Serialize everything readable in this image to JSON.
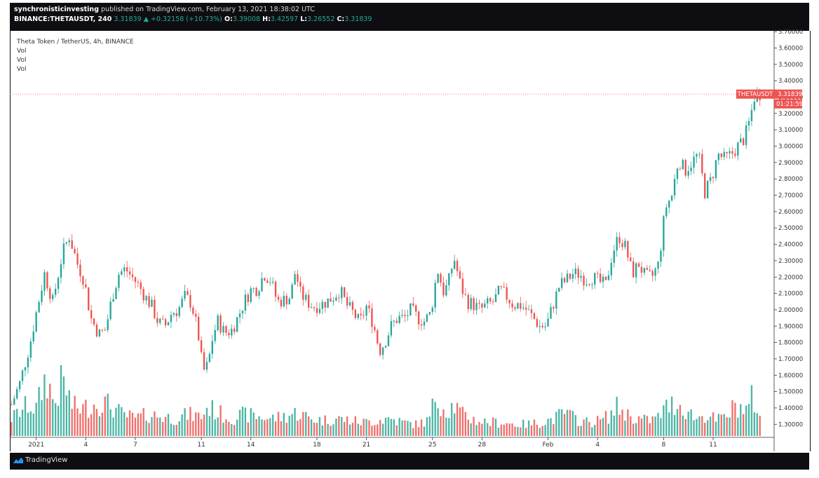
{
  "header": {
    "publisher": "synchronisticinvesting",
    "published_text": " published on TradingView.com, February 13, 2021 18:38:02 UTC",
    "symbol": "BINANCE:THETAUSDT, 240",
    "last": "3.31839",
    "change_arrow": "▲",
    "change": "+0.32158 (+10.73%)",
    "o_label": "O:",
    "o_val": "3.39008",
    "h_label": "H:",
    "h_val": "3.42597",
    "l_label": "L:",
    "l_val": "3.26552",
    "c_label": "C:",
    "c_val": "3.31839"
  },
  "legend": {
    "title": "Theta Token / TetherUS, 4h, BINANCE",
    "vol1": "Vol",
    "vol2": "Vol",
    "vol3": "Vol"
  },
  "price_tag": {
    "symbol": "THETAUSDT",
    "price": "3.31839",
    "countdown": "01:21:59"
  },
  "footer": {
    "brand": "TradingView"
  },
  "colors": {
    "up": "#26a69a",
    "down": "#ef5350",
    "vol_up": "#4db6a6",
    "vol_down": "#f0706c",
    "axis_text": "#333333"
  },
  "chart_data": {
    "type": "candlestick",
    "interval": "4h",
    "y_axis": {
      "side": "right",
      "ticks": [
        "3.70000",
        "3.60000",
        "3.50000",
        "3.40000",
        "3.30000",
        "3.20000",
        "3.10000",
        "3.00000",
        "2.90000",
        "2.80000",
        "2.70000",
        "2.60000",
        "2.50000",
        "2.40000",
        "2.30000",
        "2.20000",
        "2.10000",
        "2.00000",
        "1.90000",
        "1.80000",
        "1.70000",
        "1.60000",
        "1.50000",
        "1.40000",
        "1.30000"
      ],
      "range": [
        1.22,
        3.705
      ]
    },
    "x_axis": {
      "ticks": [
        {
          "label": "2021",
          "day": 1
        },
        {
          "label": "4",
          "day": 4
        },
        {
          "label": "7",
          "day": 7
        },
        {
          "label": "11",
          "day": 11
        },
        {
          "label": "14",
          "day": 14
        },
        {
          "label": "18",
          "day": 18
        },
        {
          "label": "21",
          "day": 21
        },
        {
          "label": "25",
          "day": 25
        },
        {
          "label": "28",
          "day": 28
        },
        {
          "label": "Feb",
          "day": 32
        },
        {
          "label": "4",
          "day": 35
        },
        {
          "label": "8",
          "day": 39
        },
        {
          "label": "11",
          "day": 42
        }
      ],
      "day_range": [
        -0.6,
        45.1
      ]
    },
    "last_price": 3.31839,
    "close_path": [
      [
        -0.5,
        1.42
      ],
      [
        0.0,
        1.55
      ],
      [
        0.6,
        1.78
      ],
      [
        1.0,
        1.98
      ],
      [
        1.5,
        2.22
      ],
      [
        2.0,
        2.05
      ],
      [
        2.6,
        2.35
      ],
      [
        3.0,
        2.45
      ],
      [
        3.5,
        2.28
      ],
      [
        3.9,
        2.18
      ],
      [
        4.3,
        1.95
      ],
      [
        4.8,
        1.85
      ],
      [
        5.2,
        1.88
      ],
      [
        5.6,
        2.08
      ],
      [
        6.0,
        2.22
      ],
      [
        6.4,
        2.25
      ],
      [
        6.8,
        2.2
      ],
      [
        7.2,
        2.15
      ],
      [
        7.6,
        2.08
      ],
      [
        8.0,
        2.02
      ],
      [
        8.4,
        1.92
      ],
      [
        8.8,
        1.9
      ],
      [
        9.2,
        1.98
      ],
      [
        9.6,
        2.0
      ],
      [
        10.0,
        2.08
      ],
      [
        10.4,
        2.04
      ],
      [
        10.8,
        1.86
      ],
      [
        11.1,
        1.62
      ],
      [
        11.4,
        1.66
      ],
      [
        11.7,
        1.84
      ],
      [
        12.0,
        1.93
      ],
      [
        12.4,
        1.86
      ],
      [
        12.8,
        1.87
      ],
      [
        13.2,
        1.95
      ],
      [
        13.6,
        2.05
      ],
      [
        14.0,
        2.12
      ],
      [
        14.4,
        2.13
      ],
      [
        14.8,
        2.22
      ],
      [
        15.2,
        2.18
      ],
      [
        15.6,
        2.05
      ],
      [
        16.0,
        2.06
      ],
      [
        16.4,
        2.08
      ],
      [
        16.7,
        2.24
      ],
      [
        17.0,
        2.1
      ],
      [
        17.4,
        2.05
      ],
      [
        17.8,
        2.02
      ],
      [
        18.2,
        2.03
      ],
      [
        18.6,
        2.05
      ],
      [
        19.0,
        2.08
      ],
      [
        19.4,
        2.12
      ],
      [
        19.8,
        2.03
      ],
      [
        20.2,
        1.98
      ],
      [
        20.6,
        1.92
      ],
      [
        21.0,
        2.02
      ],
      [
        21.4,
        1.92
      ],
      [
        21.8,
        1.75
      ],
      [
        22.1,
        1.8
      ],
      [
        22.5,
        1.9
      ],
      [
        22.9,
        1.95
      ],
      [
        23.3,
        1.95
      ],
      [
        23.7,
        2.0
      ],
      [
        24.1,
        1.95
      ],
      [
        24.5,
        1.93
      ],
      [
        24.9,
        1.98
      ],
      [
        25.3,
        2.25
      ],
      [
        25.7,
        2.1
      ],
      [
        26.0,
        2.18
      ],
      [
        26.3,
        2.32
      ],
      [
        26.7,
        2.15
      ],
      [
        27.1,
        2.05
      ],
      [
        27.5,
        2.03
      ],
      [
        27.9,
        2.0
      ],
      [
        28.3,
        2.03
      ],
      [
        28.7,
        2.05
      ],
      [
        29.1,
        2.12
      ],
      [
        29.5,
        2.08
      ],
      [
        29.9,
        2.03
      ],
      [
        30.3,
        2.03
      ],
      [
        30.7,
        2.0
      ],
      [
        31.1,
        1.95
      ],
      [
        31.5,
        1.9
      ],
      [
        31.9,
        1.9
      ],
      [
        32.3,
        2.03
      ],
      [
        32.7,
        2.15
      ],
      [
        33.1,
        2.18
      ],
      [
        33.5,
        2.22
      ],
      [
        33.9,
        2.22
      ],
      [
        34.3,
        2.18
      ],
      [
        34.7,
        2.2
      ],
      [
        35.1,
        2.17
      ],
      [
        35.5,
        2.15
      ],
      [
        35.9,
        2.35
      ],
      [
        36.3,
        2.45
      ],
      [
        36.7,
        2.38
      ],
      [
        37.1,
        2.22
      ],
      [
        37.5,
        2.28
      ],
      [
        37.9,
        2.2
      ],
      [
        38.3,
        2.2
      ],
      [
        38.7,
        2.28
      ],
      [
        39.1,
        2.62
      ],
      [
        39.5,
        2.7
      ],
      [
        39.9,
        2.92
      ],
      [
        40.3,
        2.85
      ],
      [
        40.7,
        2.9
      ],
      [
        41.1,
        2.95
      ],
      [
        41.5,
        2.72
      ],
      [
        41.9,
        2.8
      ],
      [
        42.3,
        2.95
      ],
      [
        42.7,
        2.92
      ],
      [
        43.1,
        2.95
      ],
      [
        43.5,
        3.0
      ],
      [
        43.9,
        3.05
      ],
      [
        44.2,
        3.15
      ],
      [
        44.5,
        3.3
      ],
      [
        44.8,
        3.32
      ]
    ],
    "volume_path": [
      [
        -0.5,
        0.18
      ],
      [
        0.5,
        0.32
      ],
      [
        1.0,
        0.28
      ],
      [
        1.6,
        0.62
      ],
      [
        2.1,
        0.32
      ],
      [
        2.6,
        0.58
      ],
      [
        3.2,
        0.3
      ],
      [
        3.8,
        0.28
      ],
      [
        4.4,
        0.32
      ],
      [
        5.0,
        0.35
      ],
      [
        5.6,
        0.3
      ],
      [
        6.2,
        0.22
      ],
      [
        7.0,
        0.18
      ],
      [
        7.8,
        0.22
      ],
      [
        8.6,
        0.2
      ],
      [
        9.4,
        0.18
      ],
      [
        10.2,
        0.22
      ],
      [
        11.0,
        0.2
      ],
      [
        11.4,
        0.3
      ],
      [
        12.0,
        0.24
      ],
      [
        12.8,
        0.18
      ],
      [
        13.6,
        0.22
      ],
      [
        14.4,
        0.2
      ],
      [
        15.2,
        0.18
      ],
      [
        16.0,
        0.2
      ],
      [
        16.8,
        0.24
      ],
      [
        17.6,
        0.18
      ],
      [
        18.4,
        0.16
      ],
      [
        19.2,
        0.18
      ],
      [
        20.0,
        0.16
      ],
      [
        20.8,
        0.14
      ],
      [
        21.6,
        0.16
      ],
      [
        22.4,
        0.18
      ],
      [
        23.2,
        0.14
      ],
      [
        24.0,
        0.12
      ],
      [
        24.8,
        0.16
      ],
      [
        25.2,
        0.42
      ],
      [
        25.8,
        0.26
      ],
      [
        26.3,
        0.32
      ],
      [
        26.8,
        0.22
      ],
      [
        27.6,
        0.16
      ],
      [
        28.4,
        0.14
      ],
      [
        29.2,
        0.14
      ],
      [
        30.0,
        0.12
      ],
      [
        30.8,
        0.12
      ],
      [
        31.6,
        0.14
      ],
      [
        32.4,
        0.18
      ],
      [
        33.0,
        0.24
      ],
      [
        33.6,
        0.18
      ],
      [
        34.4,
        0.14
      ],
      [
        35.2,
        0.16
      ],
      [
        35.8,
        0.22
      ],
      [
        36.2,
        0.3
      ],
      [
        36.8,
        0.22
      ],
      [
        37.4,
        0.18
      ],
      [
        38.0,
        0.16
      ],
      [
        38.6,
        0.18
      ],
      [
        39.2,
        0.3
      ],
      [
        39.8,
        0.34
      ],
      [
        40.4,
        0.26
      ],
      [
        41.0,
        0.18
      ],
      [
        41.6,
        0.22
      ],
      [
        42.2,
        0.16
      ],
      [
        42.8,
        0.2
      ],
      [
        43.4,
        0.32
      ],
      [
        44.0,
        0.26
      ],
      [
        44.4,
        0.4
      ],
      [
        44.8,
        0.22
      ]
    ]
  }
}
